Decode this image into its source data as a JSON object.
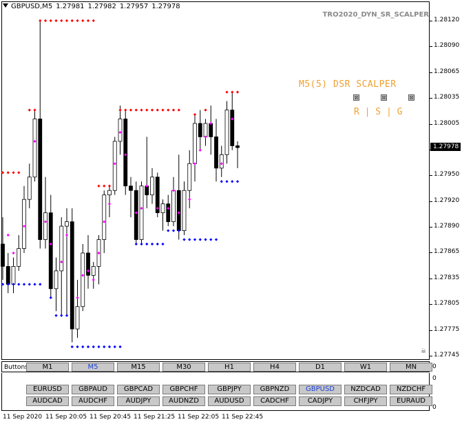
{
  "header": {
    "symbol_tf": "GBPUSD,M5",
    "open": "1.27981",
    "high": "1.27982",
    "low": "1.27957",
    "close": "1.27978"
  },
  "indicator_name": "TRO2020_DYN_SR_SCALPER",
  "scalper": {
    "title": "M5(5) DSR SCALPER",
    "checkbox_glyph": "⊠",
    "rsg": "R | S | G"
  },
  "price_axis": {
    "labels": [
      "1.28120",
      "1.28090",
      "1.28065",
      "1.28035",
      "1.28005",
      "1.27980",
      "1.27950",
      "1.27920",
      "1.27890",
      "1.27865",
      "1.27835",
      "1.27805",
      "1.27775",
      "1.27745"
    ],
    "current": "1.27978"
  },
  "time_axis": [
    "11 Sep 2020",
    "11 Sep 20:05",
    "11 Sep 20:45",
    "11 Sep 21:25",
    "11 Sep 22:05",
    "11 Sep 22:45"
  ],
  "buttons_label": "Buttons",
  "timeframes": [
    {
      "label": "M1",
      "active": false
    },
    {
      "label": "M5",
      "active": true
    },
    {
      "label": "M15",
      "active": false
    },
    {
      "label": "M30",
      "active": false
    },
    {
      "label": "H1",
      "active": false
    },
    {
      "label": "H4",
      "active": false
    },
    {
      "label": "D1",
      "active": false
    },
    {
      "label": "W1",
      "active": false
    },
    {
      "label": "MN",
      "active": false
    }
  ],
  "tf_zero": "0",
  "symbols_row1": [
    {
      "label": "EURUSD",
      "active": false
    },
    {
      "label": "GBPAUD",
      "active": false
    },
    {
      "label": "GBPCAD",
      "active": false
    },
    {
      "label": "GBPCHF",
      "active": false
    },
    {
      "label": "GBPJPY",
      "active": false
    },
    {
      "label": "GBPNZD",
      "active": false
    },
    {
      "label": "GBPUSD",
      "active": true
    },
    {
      "label": "NZDCAD",
      "active": false
    },
    {
      "label": "NZDCHF",
      "active": false
    }
  ],
  "symbols_row2": [
    {
      "label": "AUDCAD",
      "active": false
    },
    {
      "label": "AUDCHF",
      "active": false
    },
    {
      "label": "AUDJPY",
      "active": false
    },
    {
      "label": "AUDNZD",
      "active": false
    },
    {
      "label": "AUDUSD",
      "active": false
    },
    {
      "label": "CADCHF",
      "active": false
    },
    {
      "label": "CADJPY",
      "active": false
    },
    {
      "label": "CHFJPY",
      "active": false
    },
    {
      "label": "EURAUD",
      "active": false
    }
  ],
  "lower_zero": "0",
  "colors": {
    "resistance": "#ff0000",
    "support": "#0000ff",
    "signal": "#ff00ff",
    "bull": "#ffffff",
    "bear": "#000000",
    "accent": "#f0a030",
    "active_button": "#1a3fd8"
  },
  "chart_data": {
    "type": "candlestick",
    "x_unit": "5-minute bars",
    "ylim": [
      1.27735,
      1.28135
    ],
    "candles": [
      {
        "o": 1.2787,
        "h": 1.279,
        "l": 1.2783,
        "c": 1.27845
      },
      {
        "o": 1.27845,
        "h": 1.2786,
        "l": 1.27815,
        "c": 1.27825
      },
      {
        "o": 1.27825,
        "h": 1.27855,
        "l": 1.27815,
        "c": 1.27845
      },
      {
        "o": 1.27845,
        "h": 1.2788,
        "l": 1.2784,
        "c": 1.27865
      },
      {
        "o": 1.27865,
        "h": 1.27935,
        "l": 1.2786,
        "c": 1.2792
      },
      {
        "o": 1.2792,
        "h": 1.2796,
        "l": 1.2791,
        "c": 1.27945
      },
      {
        "o": 1.27945,
        "h": 1.2802,
        "l": 1.2794,
        "c": 1.2801
      },
      {
        "o": 1.2801,
        "h": 1.2812,
        "l": 1.27865,
        "c": 1.27875
      },
      {
        "o": 1.27875,
        "h": 1.27945,
        "l": 1.27865,
        "c": 1.27905
      },
      {
        "o": 1.27905,
        "h": 1.27925,
        "l": 1.2781,
        "c": 1.2782
      },
      {
        "o": 1.2782,
        "h": 1.27855,
        "l": 1.27795,
        "c": 1.2784
      },
      {
        "o": 1.2784,
        "h": 1.279,
        "l": 1.2779,
        "c": 1.2789
      },
      {
        "o": 1.2789,
        "h": 1.2791,
        "l": 1.2779,
        "c": 1.27895
      },
      {
        "o": 1.27895,
        "h": 1.2791,
        "l": 1.2776,
        "c": 1.27775
      },
      {
        "o": 1.27775,
        "h": 1.2783,
        "l": 1.27765,
        "c": 1.278
      },
      {
        "o": 1.278,
        "h": 1.2787,
        "l": 1.27795,
        "c": 1.2786
      },
      {
        "o": 1.2786,
        "h": 1.2788,
        "l": 1.2782,
        "c": 1.27835
      },
      {
        "o": 1.27835,
        "h": 1.2785,
        "l": 1.2782,
        "c": 1.27845
      },
      {
        "o": 1.27845,
        "h": 1.2788,
        "l": 1.27825,
        "c": 1.27875
      },
      {
        "o": 1.27875,
        "h": 1.2793,
        "l": 1.2786,
        "c": 1.27925
      },
      {
        "o": 1.27925,
        "h": 1.27935,
        "l": 1.279,
        "c": 1.2793
      },
      {
        "o": 1.2793,
        "h": 1.2799,
        "l": 1.27925,
        "c": 1.27985
      },
      {
        "o": 1.27985,
        "h": 1.28025,
        "l": 1.2797,
        "c": 1.2801
      },
      {
        "o": 1.2801,
        "h": 1.2802,
        "l": 1.27925,
        "c": 1.27935
      },
      {
        "o": 1.27935,
        "h": 1.27945,
        "l": 1.279,
        "c": 1.2793
      },
      {
        "o": 1.2793,
        "h": 1.2794,
        "l": 1.2787,
        "c": 1.27875
      },
      {
        "o": 1.27875,
        "h": 1.2794,
        "l": 1.2787,
        "c": 1.27935
      },
      {
        "o": 1.27935,
        "h": 1.2799,
        "l": 1.2791,
        "c": 1.27925
      },
      {
        "o": 1.27925,
        "h": 1.27955,
        "l": 1.27915,
        "c": 1.27945
      },
      {
        "o": 1.27945,
        "h": 1.2795,
        "l": 1.279,
        "c": 1.27905
      },
      {
        "o": 1.27905,
        "h": 1.2792,
        "l": 1.27885,
        "c": 1.27915
      },
      {
        "o": 1.27915,
        "h": 1.27925,
        "l": 1.2789,
        "c": 1.27895
      },
      {
        "o": 1.27895,
        "h": 1.27945,
        "l": 1.2789,
        "c": 1.2793
      },
      {
        "o": 1.2793,
        "h": 1.2797,
        "l": 1.27875,
        "c": 1.27885
      },
      {
        "o": 1.27885,
        "h": 1.2794,
        "l": 1.2788,
        "c": 1.2793
      },
      {
        "o": 1.2793,
        "h": 1.27975,
        "l": 1.2791,
        "c": 1.2796
      },
      {
        "o": 1.2796,
        "h": 1.28015,
        "l": 1.2794,
        "c": 1.28005
      },
      {
        "o": 1.28005,
        "h": 1.2802,
        "l": 1.27975,
        "c": 1.2799
      },
      {
        "o": 1.2799,
        "h": 1.2801,
        "l": 1.2798,
        "c": 1.28005
      },
      {
        "o": 1.28005,
        "h": 1.28025,
        "l": 1.2797,
        "c": 1.2799
      },
      {
        "o": 1.2799,
        "h": 1.2801,
        "l": 1.2794,
        "c": 1.27955
      },
      {
        "o": 1.27955,
        "h": 1.2798,
        "l": 1.27945,
        "c": 1.2797
      },
      {
        "o": 1.2797,
        "h": 1.2803,
        "l": 1.2796,
        "c": 1.2802
      },
      {
        "o": 1.2802,
        "h": 1.2804,
        "l": 1.27975,
        "c": 1.2798
      },
      {
        "o": 1.2798,
        "h": 1.27985,
        "l": 1.27955,
        "c": 1.27978
      }
    ],
    "resistance_segments": [
      {
        "from": 0,
        "to": 3,
        "price": 1.2795
      },
      {
        "from": 5,
        "to": 6,
        "price": 1.2802
      },
      {
        "from": 7,
        "to": 17,
        "price": 1.2812
      },
      {
        "from": 18,
        "to": 20,
        "price": 1.27935
      },
      {
        "from": 22,
        "to": 33,
        "price": 1.2802
      },
      {
        "from": 36,
        "to": 36,
        "price": 1.28015
      },
      {
        "from": 38,
        "to": 38,
        "price": 1.2802
      },
      {
        "from": 42,
        "to": 44,
        "price": 1.2804
      }
    ],
    "support_segments": [
      {
        "from": 0,
        "to": 7,
        "price": 1.27825
      },
      {
        "from": 9,
        "to": 9,
        "price": 1.2781
      },
      {
        "from": 10,
        "to": 11,
        "price": 1.2779
      },
      {
        "from": 12,
        "to": 12,
        "price": 1.2779
      },
      {
        "from": 13,
        "to": 22,
        "price": 1.27755
      },
      {
        "from": 25,
        "to": 30,
        "price": 1.2787
      },
      {
        "from": 31,
        "to": 33,
        "price": 1.27885
      },
      {
        "from": 34,
        "to": 40,
        "price": 1.27875
      },
      {
        "from": 41,
        "to": 44,
        "price": 1.2794
      }
    ],
    "signals": [
      {
        "i": 1,
        "p": 1.2788
      },
      {
        "i": 2,
        "p": 1.2786
      },
      {
        "i": 4,
        "p": 1.2789
      },
      {
        "i": 6,
        "p": 1.27985
      },
      {
        "i": 8,
        "p": 1.27895
      },
      {
        "i": 9,
        "p": 1.2787
      },
      {
        "i": 11,
        "p": 1.2785
      },
      {
        "i": 12,
        "p": 1.2788
      },
      {
        "i": 14,
        "p": 1.2781
      },
      {
        "i": 15,
        "p": 1.27835
      },
      {
        "i": 16,
        "p": 1.2784
      },
      {
        "i": 17,
        "p": 1.2783
      },
      {
        "i": 18,
        "p": 1.2786
      },
      {
        "i": 19,
        "p": 1.27895
      },
      {
        "i": 20,
        "p": 1.27915
      },
      {
        "i": 21,
        "p": 1.2796
      },
      {
        "i": 22,
        "p": 1.27995
      },
      {
        "i": 23,
        "p": 1.2797
      },
      {
        "i": 25,
        "p": 1.27905
      },
      {
        "i": 26,
        "p": 1.2791
      },
      {
        "i": 27,
        "p": 1.27935
      },
      {
        "i": 29,
        "p": 1.2791
      },
      {
        "i": 31,
        "p": 1.2791
      },
      {
        "i": 32,
        "p": 1.2793
      },
      {
        "i": 33,
        "p": 1.27905
      },
      {
        "i": 35,
        "p": 1.2792
      },
      {
        "i": 36,
        "p": 1.2796
      },
      {
        "i": 37,
        "p": 1.27975
      },
      {
        "i": 38,
        "p": 1.2799
      },
      {
        "i": 39,
        "p": 1.28005
      },
      {
        "i": 41,
        "p": 1.2796
      },
      {
        "i": 43,
        "p": 1.2801
      }
    ]
  }
}
